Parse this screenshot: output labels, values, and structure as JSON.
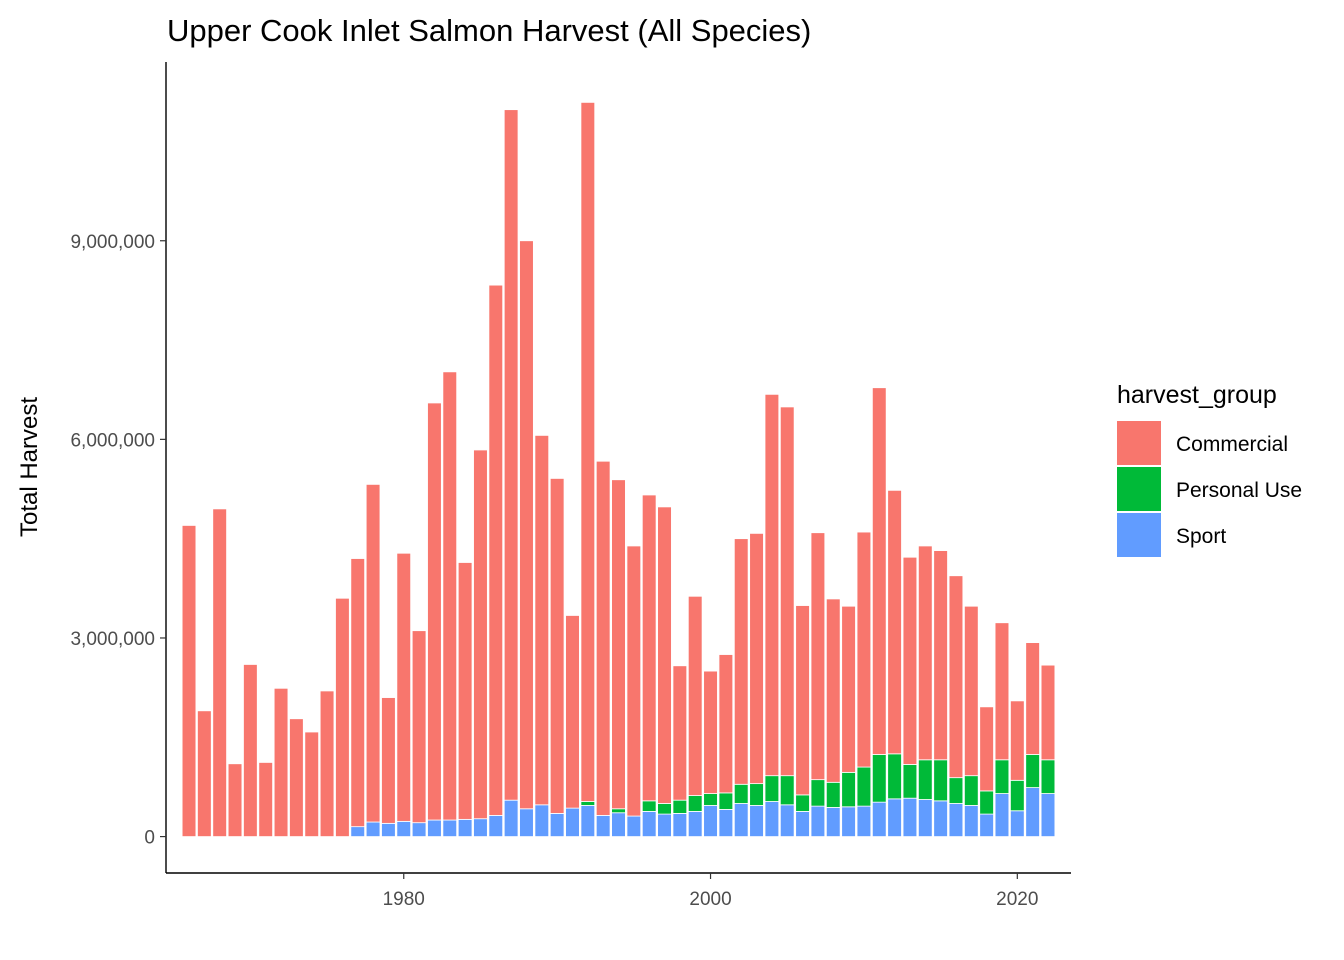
{
  "chart_data": {
    "type": "bar",
    "stacked": true,
    "title": "Upper Cook Inlet Salmon Harvest (All Species)",
    "xlabel": "",
    "ylabel": "Total Harvest",
    "xlim": [
      1964.5,
      2023.5
    ],
    "ylim": [
      -550000,
      11700000
    ],
    "x_ticks": [
      1980,
      2000,
      2020
    ],
    "y_ticks": [
      0,
      3000000,
      6000000,
      9000000
    ],
    "y_tick_labels": [
      "0",
      "3,000,000",
      "6,000,000",
      "9,000,000"
    ],
    "legend_title": "harvest_group",
    "legend_position": "right",
    "grid": false,
    "x": [
      1966,
      1967,
      1968,
      1969,
      1970,
      1971,
      1972,
      1973,
      1974,
      1975,
      1976,
      1977,
      1978,
      1979,
      1980,
      1981,
      1982,
      1983,
      1984,
      1985,
      1986,
      1987,
      1988,
      1989,
      1990,
      1991,
      1992,
      1993,
      1994,
      1995,
      1996,
      1997,
      1998,
      1999,
      2000,
      2001,
      2002,
      2003,
      2004,
      2005,
      2006,
      2007,
      2008,
      2009,
      2010,
      2011,
      2012,
      2013,
      2014,
      2015,
      2016,
      2017,
      2018,
      2019,
      2020,
      2021,
      2022
    ],
    "series": [
      {
        "name": "Sport",
        "color": "#619CFF",
        "values": [
          0,
          0,
          0,
          0,
          0,
          0,
          0,
          0,
          0,
          0,
          0,
          150000,
          220000,
          200000,
          230000,
          210000,
          250000,
          250000,
          260000,
          270000,
          320000,
          550000,
          420000,
          480000,
          350000,
          430000,
          470000,
          320000,
          360000,
          310000,
          380000,
          340000,
          350000,
          380000,
          470000,
          410000,
          500000,
          470000,
          530000,
          480000,
          380000,
          460000,
          440000,
          450000,
          460000,
          520000,
          570000,
          580000,
          560000,
          540000,
          500000,
          470000,
          340000,
          650000,
          390000,
          740000,
          650000
        ]
      },
      {
        "name": "Personal Use",
        "color": "#00BA38",
        "values": [
          0,
          0,
          0,
          0,
          0,
          0,
          0,
          0,
          0,
          0,
          0,
          0,
          0,
          0,
          0,
          0,
          0,
          0,
          0,
          0,
          0,
          0,
          0,
          0,
          0,
          0,
          60000,
          0,
          60000,
          0,
          160000,
          160000,
          200000,
          240000,
          180000,
          250000,
          290000,
          330000,
          390000,
          440000,
          250000,
          400000,
          380000,
          520000,
          590000,
          720000,
          680000,
          510000,
          600000,
          620000,
          390000,
          450000,
          350000,
          510000,
          460000,
          500000,
          510000
        ]
      },
      {
        "name": "Commercial",
        "color": "#F8766D",
        "values": [
          4700000,
          1900000,
          4950000,
          1100000,
          2600000,
          1120000,
          2240000,
          1780000,
          1580000,
          2200000,
          3600000,
          4050000,
          5100000,
          1900000,
          4050000,
          2900000,
          6300000,
          6770000,
          3880000,
          5570000,
          8010000,
          10430000,
          8580000,
          5580000,
          5060000,
          2910000,
          10560000,
          5350000,
          4970000,
          4080000,
          4620000,
          4480000,
          2030000,
          3010000,
          1850000,
          2090000,
          3710000,
          3780000,
          5760000,
          5570000,
          2860000,
          3730000,
          2770000,
          2510000,
          3550000,
          5540000,
          3980000,
          3130000,
          3230000,
          3160000,
          3050000,
          2560000,
          1270000,
          2070000,
          1200000,
          1690000,
          1430000
        ]
      }
    ]
  }
}
